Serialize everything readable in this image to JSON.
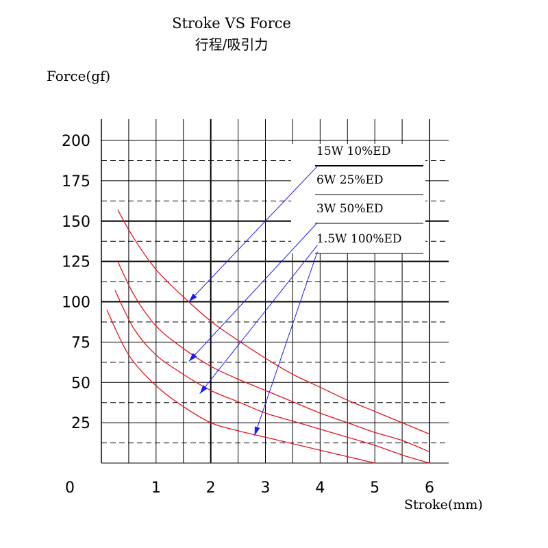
{
  "chart_data": {
    "type": "line",
    "title": "Stroke VS  Force",
    "subtitle": "行程/吸引力",
    "xlabel": "Stroke(mm)",
    "ylabel": "Force(gf)",
    "xlim": [
      0,
      6
    ],
    "ylim": [
      0,
      200
    ],
    "x_ticks": [
      "0",
      "1",
      "2",
      "3",
      "4",
      "5",
      "6"
    ],
    "y_ticks": [
      "200",
      "175",
      "150",
      "125",
      "100",
      "75",
      "50",
      "25"
    ],
    "grid": true,
    "legend_position": "top-right",
    "series_color": "#e8141e",
    "arrow_color": "#1a1aff",
    "series": [
      {
        "name": "15W  10%ED",
        "x": [
          0.3,
          0.6,
          1.0,
          1.5,
          2.0,
          2.5,
          3.0,
          3.5,
          4.0,
          4.5,
          5.0,
          5.5,
          6.0
        ],
        "y": [
          157,
          139,
          120,
          103,
          88,
          76,
          65,
          55,
          47,
          39,
          32,
          25,
          18
        ],
        "arrow": {
          "from": [
            3.95,
            184
          ],
          "to": [
            1.6,
            100
          ]
        }
      },
      {
        "name": "6W 25%ED",
        "x": [
          0.3,
          0.6,
          1.0,
          1.5,
          2.0,
          2.5,
          3.0,
          3.5,
          4.0,
          4.5,
          5.0,
          5.5,
          6.0
        ],
        "y": [
          125,
          104,
          85,
          71,
          60,
          52,
          45,
          38,
          31,
          25,
          19,
          14,
          7
        ],
        "arrow": {
          "from": [
            3.95,
            149
          ],
          "to": [
            1.6,
            63
          ]
        }
      },
      {
        "name": "3W  50%ED",
        "x": [
          0.25,
          0.6,
          1.0,
          1.5,
          2.0,
          2.5,
          3.0,
          3.5,
          4.0,
          4.5,
          5.0,
          5.5,
          6.0
        ],
        "y": [
          107,
          83,
          67,
          55,
          45,
          38,
          31,
          26,
          21,
          16,
          11,
          5,
          0
        ],
        "arrow": {
          "from": [
            3.95,
            135
          ],
          "to": [
            1.8,
            43
          ]
        }
      },
      {
        "name": "1.5W 100%ED",
        "x": [
          0.1,
          0.5,
          1.0,
          1.5,
          2.0,
          2.5,
          3.0,
          3.5,
          4.0,
          4.5,
          5.0
        ],
        "y": [
          95,
          67,
          48,
          35,
          25,
          20,
          16,
          12,
          8,
          4,
          0
        ],
        "arrow": {
          "from": [
            3.95,
            131
          ],
          "to": [
            2.8,
            17
          ]
        }
      }
    ]
  }
}
